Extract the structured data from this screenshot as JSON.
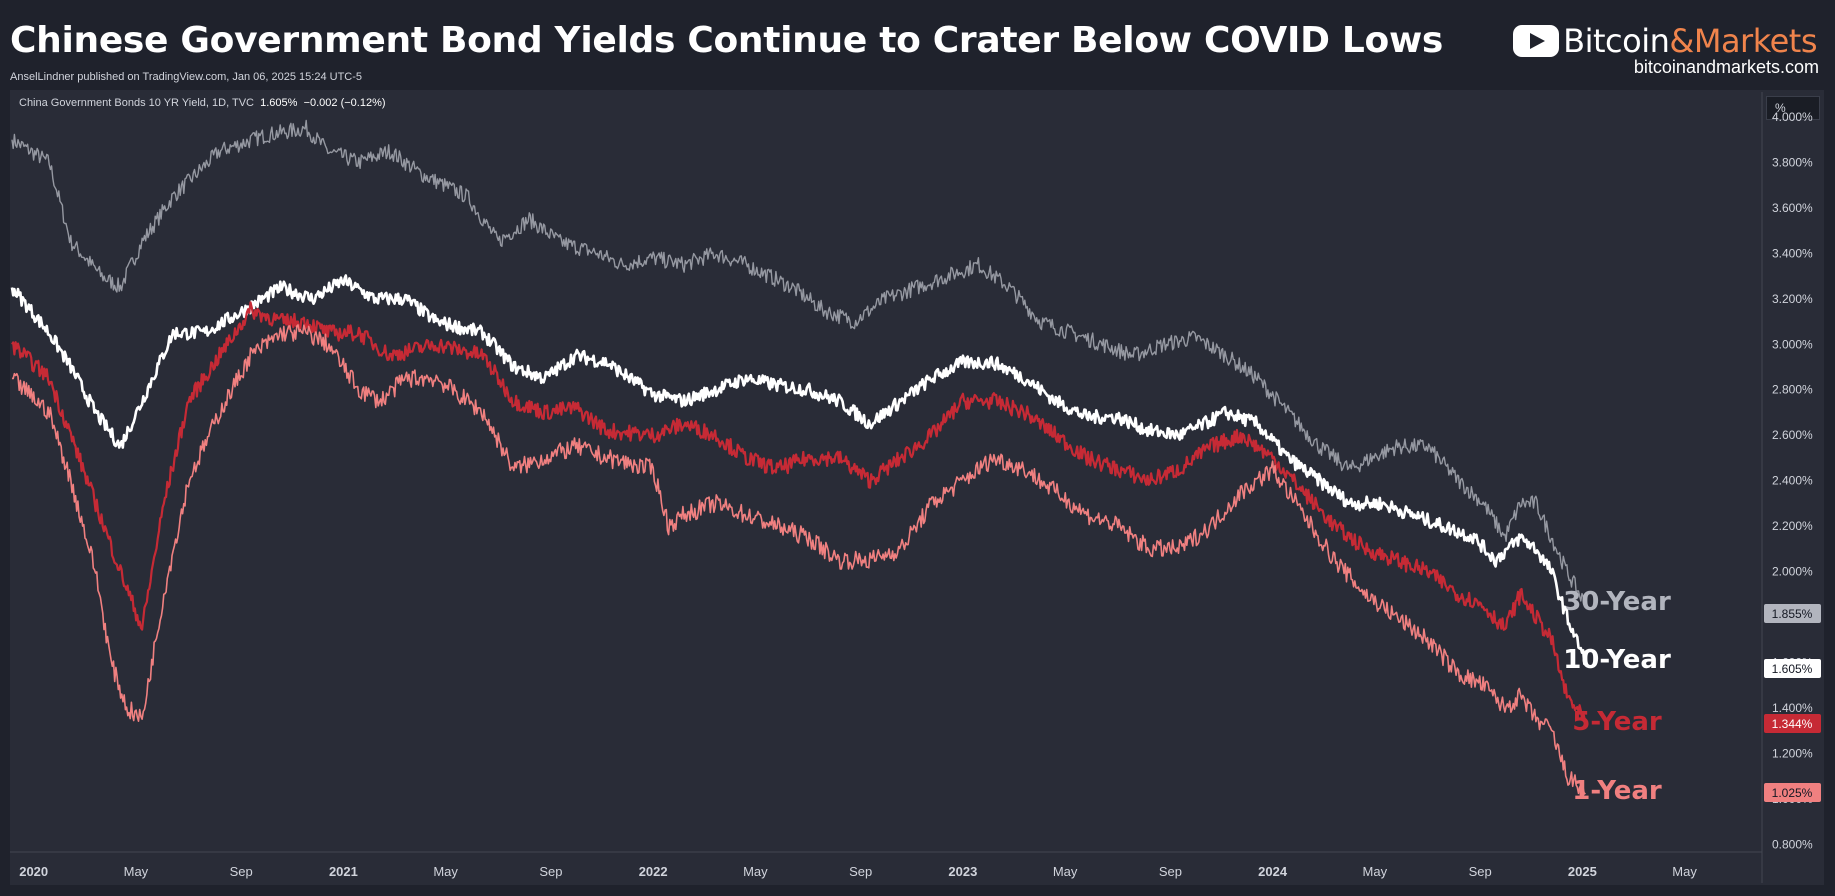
{
  "header": {
    "title": "Chinese Government Bond Yields Continue to Crater Below COVID Lows",
    "byline": "AnselLindner published on TradingView.com, Jan 06, 2025 15:24 UTC-5",
    "brand_prefix": "Bitcoin",
    "brand_amp": "&",
    "brand_suffix": "Markets",
    "site": "bitcoinandmarkets.com"
  },
  "legend": {
    "symbol": "China Government Bonds 10 YR Yield, 1D, TVC",
    "value": "1.605%",
    "change": "−0.002 (−0.12%)"
  },
  "unit_button": "%",
  "colors": {
    "y30": "#9598a1",
    "y10": "#ffffff",
    "y5": "#c62a35",
    "y1": "#f08080"
  },
  "chart_data": {
    "type": "line",
    "title": "Chinese Government Bond Yields Continue to Crater Below COVID Lows",
    "xlabel": "",
    "ylabel": "%",
    "ylim": [
      0.7,
      4.15
    ],
    "xlim": [
      2019.93,
      2025.58
    ],
    "y_ticks": [
      0.8,
      1.0,
      1.2,
      1.4,
      1.6,
      1.8,
      2.0,
      2.2,
      2.4,
      2.6,
      2.8,
      3.0,
      3.2,
      3.4,
      3.6,
      3.8,
      4.0
    ],
    "y_tick_labels": [
      "0.800%",
      "1.000%",
      "1.200%",
      "1.400%",
      "1.600%",
      "1.800%",
      "2.000%",
      "2.200%",
      "2.400%",
      "2.600%",
      "2.800%",
      "3.000%",
      "3.200%",
      "3.400%",
      "3.600%",
      "3.800%",
      "4.000%"
    ],
    "x_ticks": [
      {
        "t": 2020.0,
        "label": "2020",
        "bold": true
      },
      {
        "t": 2020.33,
        "label": "May",
        "bold": false
      },
      {
        "t": 2020.67,
        "label": "Sep",
        "bold": false
      },
      {
        "t": 2021.0,
        "label": "2021",
        "bold": true
      },
      {
        "t": 2021.33,
        "label": "May",
        "bold": false
      },
      {
        "t": 2021.67,
        "label": "Sep",
        "bold": false
      },
      {
        "t": 2022.0,
        "label": "2022",
        "bold": true
      },
      {
        "t": 2022.33,
        "label": "May",
        "bold": false
      },
      {
        "t": 2022.67,
        "label": "Sep",
        "bold": false
      },
      {
        "t": 2023.0,
        "label": "2023",
        "bold": true
      },
      {
        "t": 2023.33,
        "label": "May",
        "bold": false
      },
      {
        "t": 2023.67,
        "label": "Sep",
        "bold": false
      },
      {
        "t": 2024.0,
        "label": "2024",
        "bold": true
      },
      {
        "t": 2024.33,
        "label": "May",
        "bold": false
      },
      {
        "t": 2024.67,
        "label": "Sep",
        "bold": false
      },
      {
        "t": 2025.0,
        "label": "2025",
        "bold": true
      },
      {
        "t": 2025.33,
        "label": "May",
        "bold": false
      }
    ],
    "series": [
      {
        "name": "30-Year",
        "key": "y30",
        "last_label": "1.855%",
        "x": [
          2019.93,
          2020.05,
          2020.12,
          2020.22,
          2020.28,
          2020.35,
          2020.45,
          2020.6,
          2020.75,
          2020.88,
          2020.95,
          2021.05,
          2021.15,
          2021.25,
          2021.4,
          2021.5,
          2021.6,
          2021.7,
          2021.82,
          2021.9,
          2022.0,
          2022.1,
          2022.2,
          2022.3,
          2022.45,
          2022.55,
          2022.65,
          2022.75,
          2022.85,
          2022.95,
          2023.05,
          2023.15,
          2023.25,
          2023.35,
          2023.45,
          2023.55,
          2023.65,
          2023.75,
          2023.85,
          2023.95,
          2024.05,
          2024.15,
          2024.25,
          2024.32,
          2024.4,
          2024.5,
          2024.6,
          2024.68,
          2024.75,
          2024.8,
          2024.85,
          2024.9,
          2024.95,
          2025.01
        ],
        "values": [
          3.9,
          3.8,
          3.45,
          3.3,
          3.25,
          3.45,
          3.65,
          3.85,
          3.92,
          3.95,
          3.85,
          3.8,
          3.85,
          3.75,
          3.65,
          3.45,
          3.55,
          3.45,
          3.4,
          3.35,
          3.38,
          3.35,
          3.4,
          3.35,
          3.25,
          3.15,
          3.1,
          3.2,
          3.25,
          3.3,
          3.35,
          3.25,
          3.1,
          3.05,
          3.0,
          2.95,
          3.0,
          3.03,
          2.95,
          2.85,
          2.7,
          2.55,
          2.45,
          2.5,
          2.55,
          2.55,
          2.4,
          2.3,
          2.15,
          2.3,
          2.3,
          2.15,
          2.0,
          1.855
        ]
      },
      {
        "name": "10-Year",
        "key": "y10",
        "last_label": "1.605%",
        "x": [
          2019.93,
          2020.05,
          2020.12,
          2020.2,
          2020.28,
          2020.35,
          2020.45,
          2020.55,
          2020.68,
          2020.8,
          2020.9,
          2021.0,
          2021.1,
          2021.2,
          2021.3,
          2021.45,
          2021.55,
          2021.65,
          2021.75,
          2021.85,
          2022.0,
          2022.1,
          2022.2,
          2022.3,
          2022.4,
          2022.5,
          2022.6,
          2022.7,
          2022.8,
          2022.9,
          2023.0,
          2023.1,
          2023.2,
          2023.3,
          2023.4,
          2023.5,
          2023.6,
          2023.7,
          2023.78,
          2023.85,
          2023.95,
          2024.05,
          2024.15,
          2024.25,
          2024.35,
          2024.45,
          2024.55,
          2024.65,
          2024.72,
          2024.8,
          2024.85,
          2024.9,
          2024.95,
          2025.01
        ],
        "values": [
          3.25,
          3.05,
          2.9,
          2.7,
          2.55,
          2.75,
          3.05,
          3.05,
          3.15,
          3.25,
          3.2,
          3.28,
          3.2,
          3.2,
          3.1,
          3.05,
          2.9,
          2.85,
          2.95,
          2.92,
          2.78,
          2.75,
          2.8,
          2.85,
          2.82,
          2.8,
          2.75,
          2.65,
          2.75,
          2.85,
          2.92,
          2.92,
          2.85,
          2.75,
          2.68,
          2.68,
          2.62,
          2.6,
          2.65,
          2.7,
          2.65,
          2.5,
          2.4,
          2.3,
          2.3,
          2.25,
          2.2,
          2.15,
          2.05,
          2.15,
          2.1,
          2.0,
          1.8,
          1.605
        ]
      },
      {
        "name": "5-Year",
        "key": "y5",
        "last_label": "1.344%",
        "x": [
          2019.93,
          2020.05,
          2020.12,
          2020.2,
          2020.28,
          2020.35,
          2020.42,
          2020.5,
          2020.6,
          2020.7,
          2020.8,
          2020.88,
          2020.95,
          2021.05,
          2021.15,
          2021.3,
          2021.45,
          2021.55,
          2021.65,
          2021.75,
          2021.85,
          2022.0,
          2022.1,
          2022.2,
          2022.3,
          2022.4,
          2022.5,
          2022.6,
          2022.7,
          2022.8,
          2022.9,
          2023.0,
          2023.1,
          2023.2,
          2023.3,
          2023.4,
          2023.5,
          2023.6,
          2023.7,
          2023.8,
          2023.9,
          2024.0,
          2024.1,
          2024.2,
          2024.3,
          2024.4,
          2024.5,
          2024.6,
          2024.68,
          2024.75,
          2024.8,
          2024.85,
          2024.9,
          2024.95,
          2025.01
        ],
        "values": [
          3.0,
          2.85,
          2.6,
          2.3,
          2.0,
          1.75,
          2.3,
          2.75,
          2.95,
          3.15,
          3.1,
          3.1,
          3.05,
          3.05,
          2.95,
          3.0,
          2.95,
          2.75,
          2.7,
          2.72,
          2.62,
          2.6,
          2.65,
          2.6,
          2.5,
          2.45,
          2.5,
          2.5,
          2.4,
          2.5,
          2.6,
          2.75,
          2.75,
          2.7,
          2.6,
          2.5,
          2.45,
          2.4,
          2.45,
          2.55,
          2.6,
          2.5,
          2.35,
          2.2,
          2.1,
          2.05,
          2.0,
          1.9,
          1.85,
          1.75,
          1.9,
          1.8,
          1.7,
          1.45,
          1.344
        ]
      },
      {
        "name": "1-Year",
        "key": "y1",
        "last_label": "1.025%",
        "x": [
          2019.93,
          2020.05,
          2020.12,
          2020.2,
          2020.25,
          2020.3,
          2020.35,
          2020.42,
          2020.5,
          2020.6,
          2020.7,
          2020.8,
          2020.88,
          2020.95,
          2021.05,
          2021.12,
          2021.2,
          2021.3,
          2021.45,
          2021.55,
          2021.65,
          2021.75,
          2021.85,
          2022.0,
          2022.05,
          2022.1,
          2022.2,
          2022.3,
          2022.4,
          2022.5,
          2022.6,
          2022.7,
          2022.8,
          2022.9,
          2023.0,
          2023.1,
          2023.2,
          2023.3,
          2023.4,
          2023.5,
          2023.6,
          2023.7,
          2023.8,
          2023.9,
          2024.0,
          2024.1,
          2024.2,
          2024.3,
          2024.4,
          2024.5,
          2024.6,
          2024.68,
          2024.75,
          2024.8,
          2024.85,
          2024.9,
          2024.95,
          2025.01
        ],
        "values": [
          2.85,
          2.7,
          2.4,
          2.0,
          1.6,
          1.4,
          1.35,
          1.9,
          2.4,
          2.7,
          2.95,
          3.05,
          3.05,
          3.0,
          2.8,
          2.75,
          2.85,
          2.85,
          2.7,
          2.45,
          2.5,
          2.55,
          2.5,
          2.45,
          2.2,
          2.25,
          2.3,
          2.25,
          2.2,
          2.15,
          2.05,
          2.05,
          2.1,
          2.3,
          2.4,
          2.5,
          2.45,
          2.35,
          2.25,
          2.2,
          2.1,
          2.1,
          2.2,
          2.35,
          2.45,
          2.25,
          2.05,
          1.9,
          1.8,
          1.7,
          1.55,
          1.5,
          1.4,
          1.45,
          1.35,
          1.3,
          1.1,
          1.025
        ]
      }
    ]
  }
}
